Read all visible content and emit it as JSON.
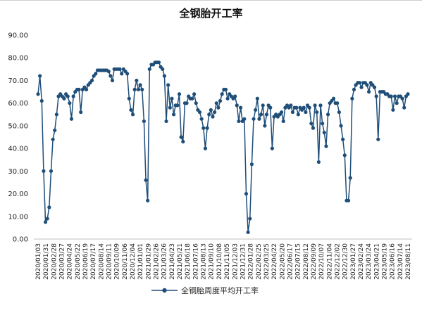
{
  "chart_data": {
    "type": "line",
    "title": "全钢胎开工率",
    "xlabel": "",
    "ylabel": "",
    "ylim": [
      0,
      90
    ],
    "yticks": [
      "0.00",
      "10.00",
      "20.00",
      "30.00",
      "40.00",
      "50.00",
      "60.00",
      "70.00",
      "80.00",
      "90.00"
    ],
    "grid": false,
    "legend": "bottom-center",
    "color": "#1f4e79",
    "xtick_labels": [
      "2020/01/03",
      "2020/01/31",
      "2020/02/28",
      "2020/03/27",
      "2020/04/24",
      "2020/05/22",
      "2020/06/19",
      "2020/07/17",
      "2020/08/14",
      "2020/09/11",
      "2020/10/09",
      "2020/11/06",
      "2020/12/04",
      "2021/01/01",
      "2021/01/29",
      "2021/02/26",
      "2021/03/26",
      "2021/04/23",
      "2021/05/21",
      "2021/06/18",
      "2021/07/16",
      "2021/08/13",
      "2021/09/10",
      "2021/10/08",
      "2021/11/05",
      "2021/12/03",
      "2021/12/31",
      "2022/01/28",
      "2022/02/25",
      "2022/03/25",
      "2022/04/22",
      "2022/05/20",
      "2022/06/17",
      "2022/07/15",
      "2022/08/12",
      "2022/09/09",
      "2022/10/07",
      "2022/11/04",
      "2022/12/02",
      "2022/12/30",
      "2023/01/27",
      "2023/02/24",
      "2023/03/24",
      "2023/04/21",
      "2023/05/19",
      "2023/06/16",
      "2023/07/14",
      "2023/08/11"
    ],
    "series": [
      {
        "name": "全钢胎周度平均开工率",
        "values": [
          64,
          72,
          61,
          30,
          7.5,
          9,
          14,
          30,
          44,
          48,
          55,
          63,
          64,
          63,
          62,
          64,
          63,
          60,
          53,
          63,
          65,
          66,
          66,
          56,
          66,
          67,
          66,
          68,
          69,
          70,
          72,
          73,
          74.5,
          74.5,
          74.5,
          74.5,
          74.5,
          74.5,
          74,
          72,
          70,
          75,
          75,
          75,
          75,
          73,
          75,
          74,
          73,
          62,
          57,
          55,
          66,
          70,
          66,
          68,
          66,
          52,
          26,
          17,
          75,
          77,
          77,
          78,
          78,
          78,
          76,
          75,
          72,
          52,
          68,
          58,
          62,
          55,
          59,
          59,
          64,
          45,
          43,
          60,
          60,
          63,
          62,
          62,
          64,
          60,
          57,
          56,
          53,
          49,
          40,
          49,
          55,
          57,
          54,
          56,
          60,
          58,
          61,
          64,
          66,
          66,
          62,
          64,
          63,
          62,
          63,
          59,
          52,
          58,
          52,
          53,
          20,
          3,
          9,
          33,
          53,
          57,
          62,
          53,
          55,
          59,
          50,
          55,
          59,
          58,
          40,
          54,
          55,
          54,
          55,
          56,
          52,
          58,
          59,
          58,
          59,
          56,
          58,
          58,
          55,
          58,
          57,
          58,
          56,
          59,
          58,
          51,
          49,
          59,
          56,
          34,
          59,
          51,
          47,
          41,
          55,
          60,
          61,
          62,
          60,
          60,
          56,
          50,
          44,
          37,
          17,
          17,
          27,
          62,
          66,
          68,
          69,
          69,
          67,
          69,
          69,
          68,
          65,
          69,
          68,
          67,
          63,
          44,
          65,
          65,
          65,
          64,
          64,
          63,
          63,
          57,
          63,
          60,
          63,
          63,
          62,
          58,
          63,
          64
        ]
      }
    ]
  }
}
